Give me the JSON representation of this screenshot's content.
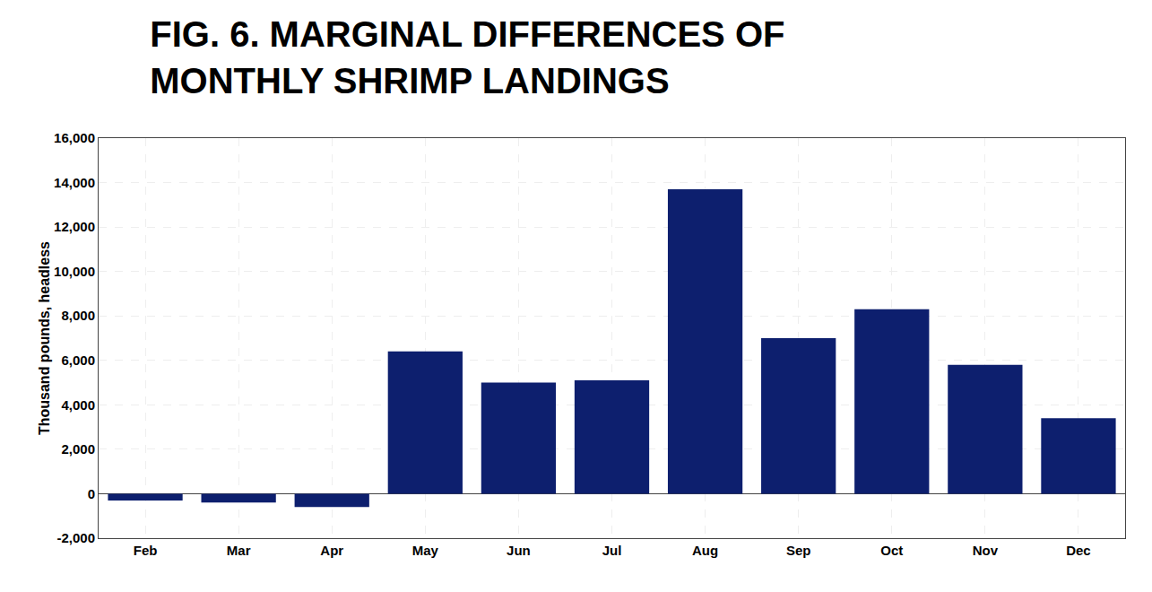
{
  "chart_data": {
    "type": "bar",
    "title": "FIG. 6. MARGINAL DIFFERENCES OF\nMONTHLY SHRIMP LANDINGS",
    "ylabel": "Thousand pounds, headless",
    "categories": [
      "Feb",
      "Mar",
      "Apr",
      "May",
      "Jun",
      "Jul",
      "Aug",
      "Sep",
      "Oct",
      "Nov",
      "Dec"
    ],
    "values": [
      -300,
      -400,
      -600,
      6400,
      5000,
      5100,
      13700,
      7000,
      8300,
      5800,
      3400
    ],
    "color": "#0d1f6e",
    "ylim": [
      -2000,
      16000
    ],
    "yticks": [
      {
        "value": -2000,
        "label": "-2,000"
      },
      0,
      {
        "value": 2000,
        "label": "2,000"
      },
      {
        "value": 4000,
        "label": "4,000"
      },
      {
        "value": 6000,
        "label": "6,000"
      },
      {
        "value": 8000,
        "label": "8,000"
      },
      {
        "value": 10000,
        "label": "10,000"
      },
      {
        "value": 12000,
        "label": "12,000"
      },
      {
        "value": 14000,
        "label": "14,000"
      },
      {
        "value": 16000,
        "label": "16,000"
      }
    ],
    "grid": true
  }
}
